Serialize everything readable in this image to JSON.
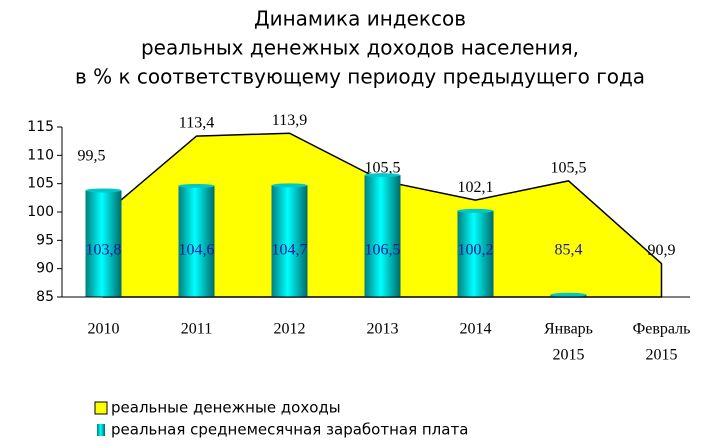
{
  "chart_data": {
    "type": "area_bar",
    "title": [
      "Динамика индексов",
      "реальных денежных доходов населения,",
      "в % к соответствующему периоду предыдущего года"
    ],
    "categories": [
      [
        "2010"
      ],
      [
        "2011"
      ],
      [
        "2012"
      ],
      [
        "2013"
      ],
      [
        "2014"
      ],
      [
        "Январь",
        "2015"
      ],
      [
        "Февраль",
        "2015"
      ]
    ],
    "series": [
      {
        "name": "реальные денежные доходы",
        "kind": "area",
        "color": "#ffff00",
        "values": [
          99.5,
          113.4,
          113.9,
          105.5,
          102.1,
          105.5,
          90.9
        ],
        "value_labels": [
          "99,5",
          "113,4",
          "113,9",
          "105,5",
          "102,1",
          "105,5",
          "90,9"
        ]
      },
      {
        "name": "реальная среднемесячная заработная плата",
        "kind": "bar",
        "color": "#00c8c8",
        "values": [
          103.8,
          104.6,
          104.7,
          106.5,
          100.2,
          85.4,
          null
        ],
        "value_labels": [
          "103,8",
          "104,6",
          "104,7",
          "106,5",
          "100,2",
          "85,4",
          null
        ]
      }
    ],
    "ylim": [
      85,
      115
    ],
    "yticks": [
      85,
      90,
      95,
      100,
      105,
      110,
      115
    ]
  }
}
